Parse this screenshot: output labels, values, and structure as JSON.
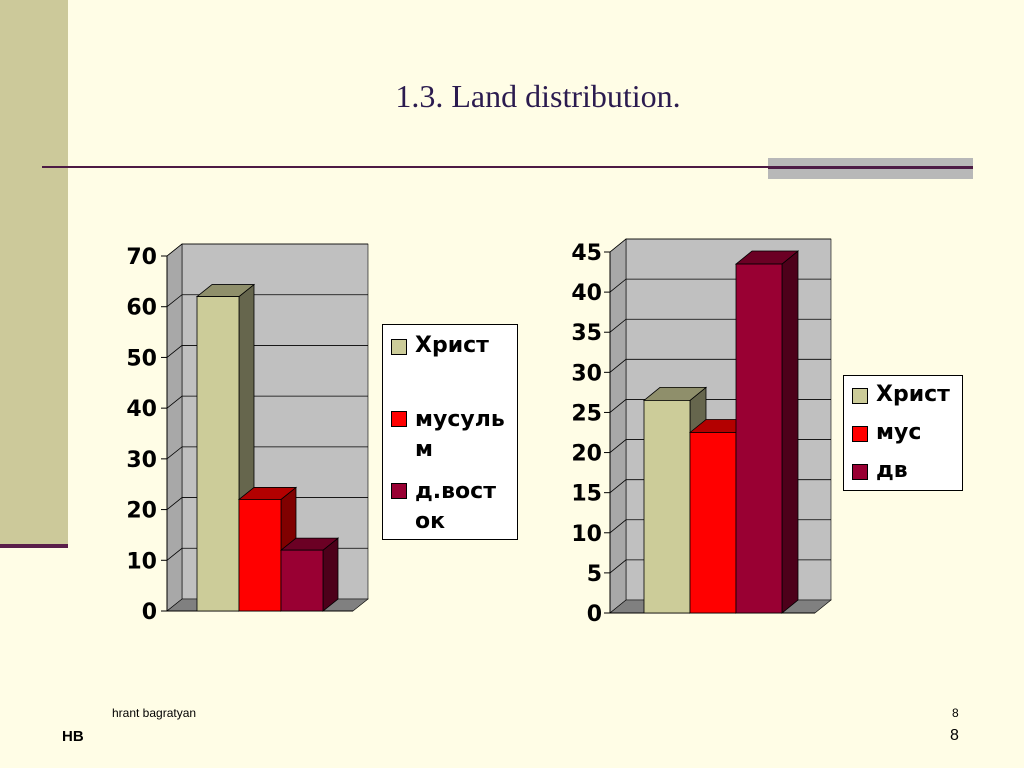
{
  "slide": {
    "title": "1.3. Land distribution.",
    "author": "hrant bagratyan",
    "page_number_small": "8",
    "initials": "HB",
    "page_number": "8"
  },
  "colors": {
    "background": "#FFFDE6",
    "band": "#CCC99A",
    "accent_line": "#4D1B45",
    "wall": "#C0C0C0",
    "floor": "#808080"
  },
  "chart_data": [
    {
      "type": "bar",
      "three_d": true,
      "categories": [
        ""
      ],
      "series": [
        {
          "name": "Христ",
          "values": [
            62
          ],
          "color": "#CCCC99"
        },
        {
          "name": "мусульм",
          "values": [
            22
          ],
          "color": "#FF0000"
        },
        {
          "name": "д.восток",
          "values": [
            12
          ],
          "color": "#990033"
        }
      ],
      "legend_labels": [
        "Христ",
        "мусуль м",
        "д.вост ок"
      ],
      "yticks": [
        "0",
        "10",
        "20",
        "30",
        "40",
        "50",
        "60",
        "70"
      ],
      "ylim": [
        0,
        70
      ],
      "grid": true,
      "legend_position": "right"
    },
    {
      "type": "bar",
      "three_d": true,
      "categories": [
        ""
      ],
      "series": [
        {
          "name": "Христ",
          "values": [
            26.5
          ],
          "color": "#CCCC99"
        },
        {
          "name": "мус",
          "values": [
            22.5
          ],
          "color": "#FF0000"
        },
        {
          "name": "дв",
          "values": [
            43.5
          ],
          "color": "#990033"
        }
      ],
      "legend_labels": [
        "Христ",
        "мус",
        "дв"
      ],
      "yticks": [
        "0",
        "5",
        "10",
        "15",
        "20",
        "25",
        "30",
        "35",
        "40",
        "45"
      ],
      "ylim": [
        0,
        45
      ],
      "grid": true,
      "legend_position": "right"
    }
  ]
}
